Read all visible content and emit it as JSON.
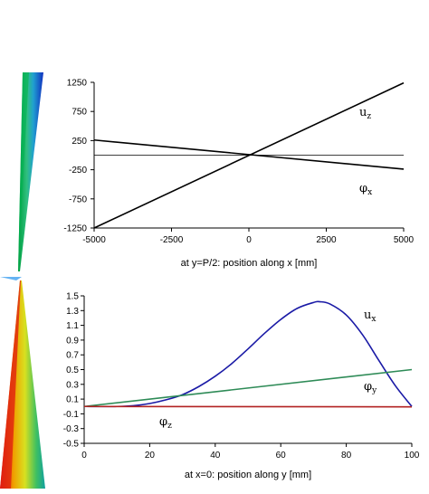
{
  "chart_data": [
    {
      "type": "line",
      "xlabel": "at y=P/2:  position along x [mm]",
      "ylabel": "",
      "xlim": [
        -5000,
        5000
      ],
      "ylim": [
        -1250,
        1250
      ],
      "xticks": [
        "-5000",
        "-2500",
        "0",
        "2500",
        "5000"
      ],
      "yticks": [
        "1250",
        "750",
        "250",
        "-250",
        "-750",
        "-1250"
      ],
      "grid": false,
      "series": [
        {
          "name": "u",
          "name_sub": "z",
          "color": "#000000",
          "x": [
            -5000,
            5000
          ],
          "y": [
            -1250,
            1240
          ]
        },
        {
          "name": "φ",
          "name_sub": "x",
          "color": "#000000",
          "x": [
            -5000,
            5000
          ],
          "y": [
            260,
            -240
          ]
        },
        {
          "name": "",
          "color": "#000000",
          "x": [
            -5000,
            5000
          ],
          "y": [
            0,
            0
          ]
        }
      ]
    },
    {
      "type": "line",
      "xlabel": "at x=0:  position along y [mm]",
      "ylabel": "",
      "xlim": [
        0,
        100
      ],
      "ylim": [
        -0.5,
        1.5
      ],
      "xticks": [
        "0",
        "20",
        "40",
        "60",
        "80",
        "100"
      ],
      "yticks": [
        "1.5",
        "1.3",
        "1.1",
        "0.9",
        "0.7",
        "0.5",
        "0.3",
        "0.1",
        "-0.1",
        "-0.3",
        "-0.5"
      ],
      "grid": false,
      "series": [
        {
          "name": "u",
          "name_sub": "x",
          "color": "#1a1aa6",
          "x": [
            0,
            10,
            15,
            20,
            25,
            30,
            35,
            40,
            45,
            50,
            55,
            60,
            65,
            70,
            72,
            75,
            80,
            85,
            90,
            95,
            100
          ],
          "y": [
            0,
            0,
            0.01,
            0.04,
            0.09,
            0.16,
            0.27,
            0.41,
            0.58,
            0.78,
            0.99,
            1.18,
            1.33,
            1.41,
            1.42,
            1.39,
            1.24,
            0.97,
            0.62,
            0.28,
            0
          ]
        },
        {
          "name": "φ",
          "name_sub": "y",
          "color": "#2e8b57",
          "x": [
            0,
            100
          ],
          "y": [
            0,
            0.5
          ]
        },
        {
          "name": "φ",
          "name_sub": "z",
          "color": "#b22222",
          "x": [
            0,
            100
          ],
          "y": [
            0,
            -0.005
          ]
        }
      ]
    }
  ]
}
